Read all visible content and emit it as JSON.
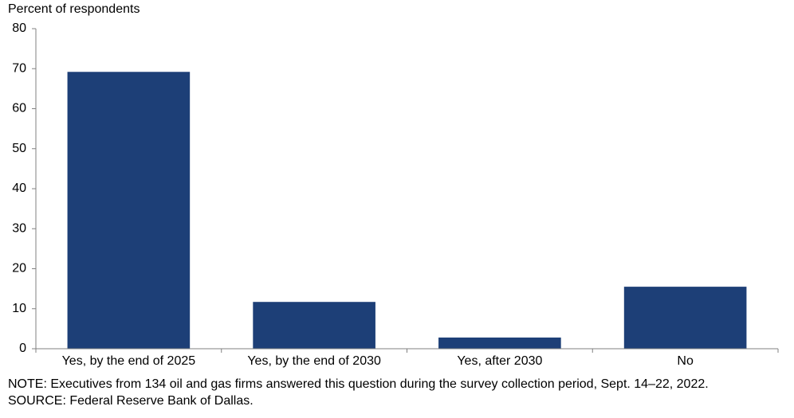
{
  "chart_data": {
    "type": "bar",
    "y_label": "Percent of respondents",
    "categories": [
      "Yes, by the end of 2025",
      "Yes, by the end of 2030",
      "Yes, after 2030",
      "No"
    ],
    "values": [
      69.2,
      11.7,
      2.8,
      15.5
    ],
    "color": "#1d3f77",
    "ylim": [
      0,
      80
    ],
    "yticks": [
      0,
      10,
      20,
      30,
      40,
      50,
      60,
      70,
      80
    ],
    "grid": false,
    "note": "NOTE:  Executives from 134 oil and gas firms answered this question during the survey collection period, Sept. 14–22, 2022.",
    "source": "SOURCE:  Federal Reserve Bank of Dallas."
  }
}
